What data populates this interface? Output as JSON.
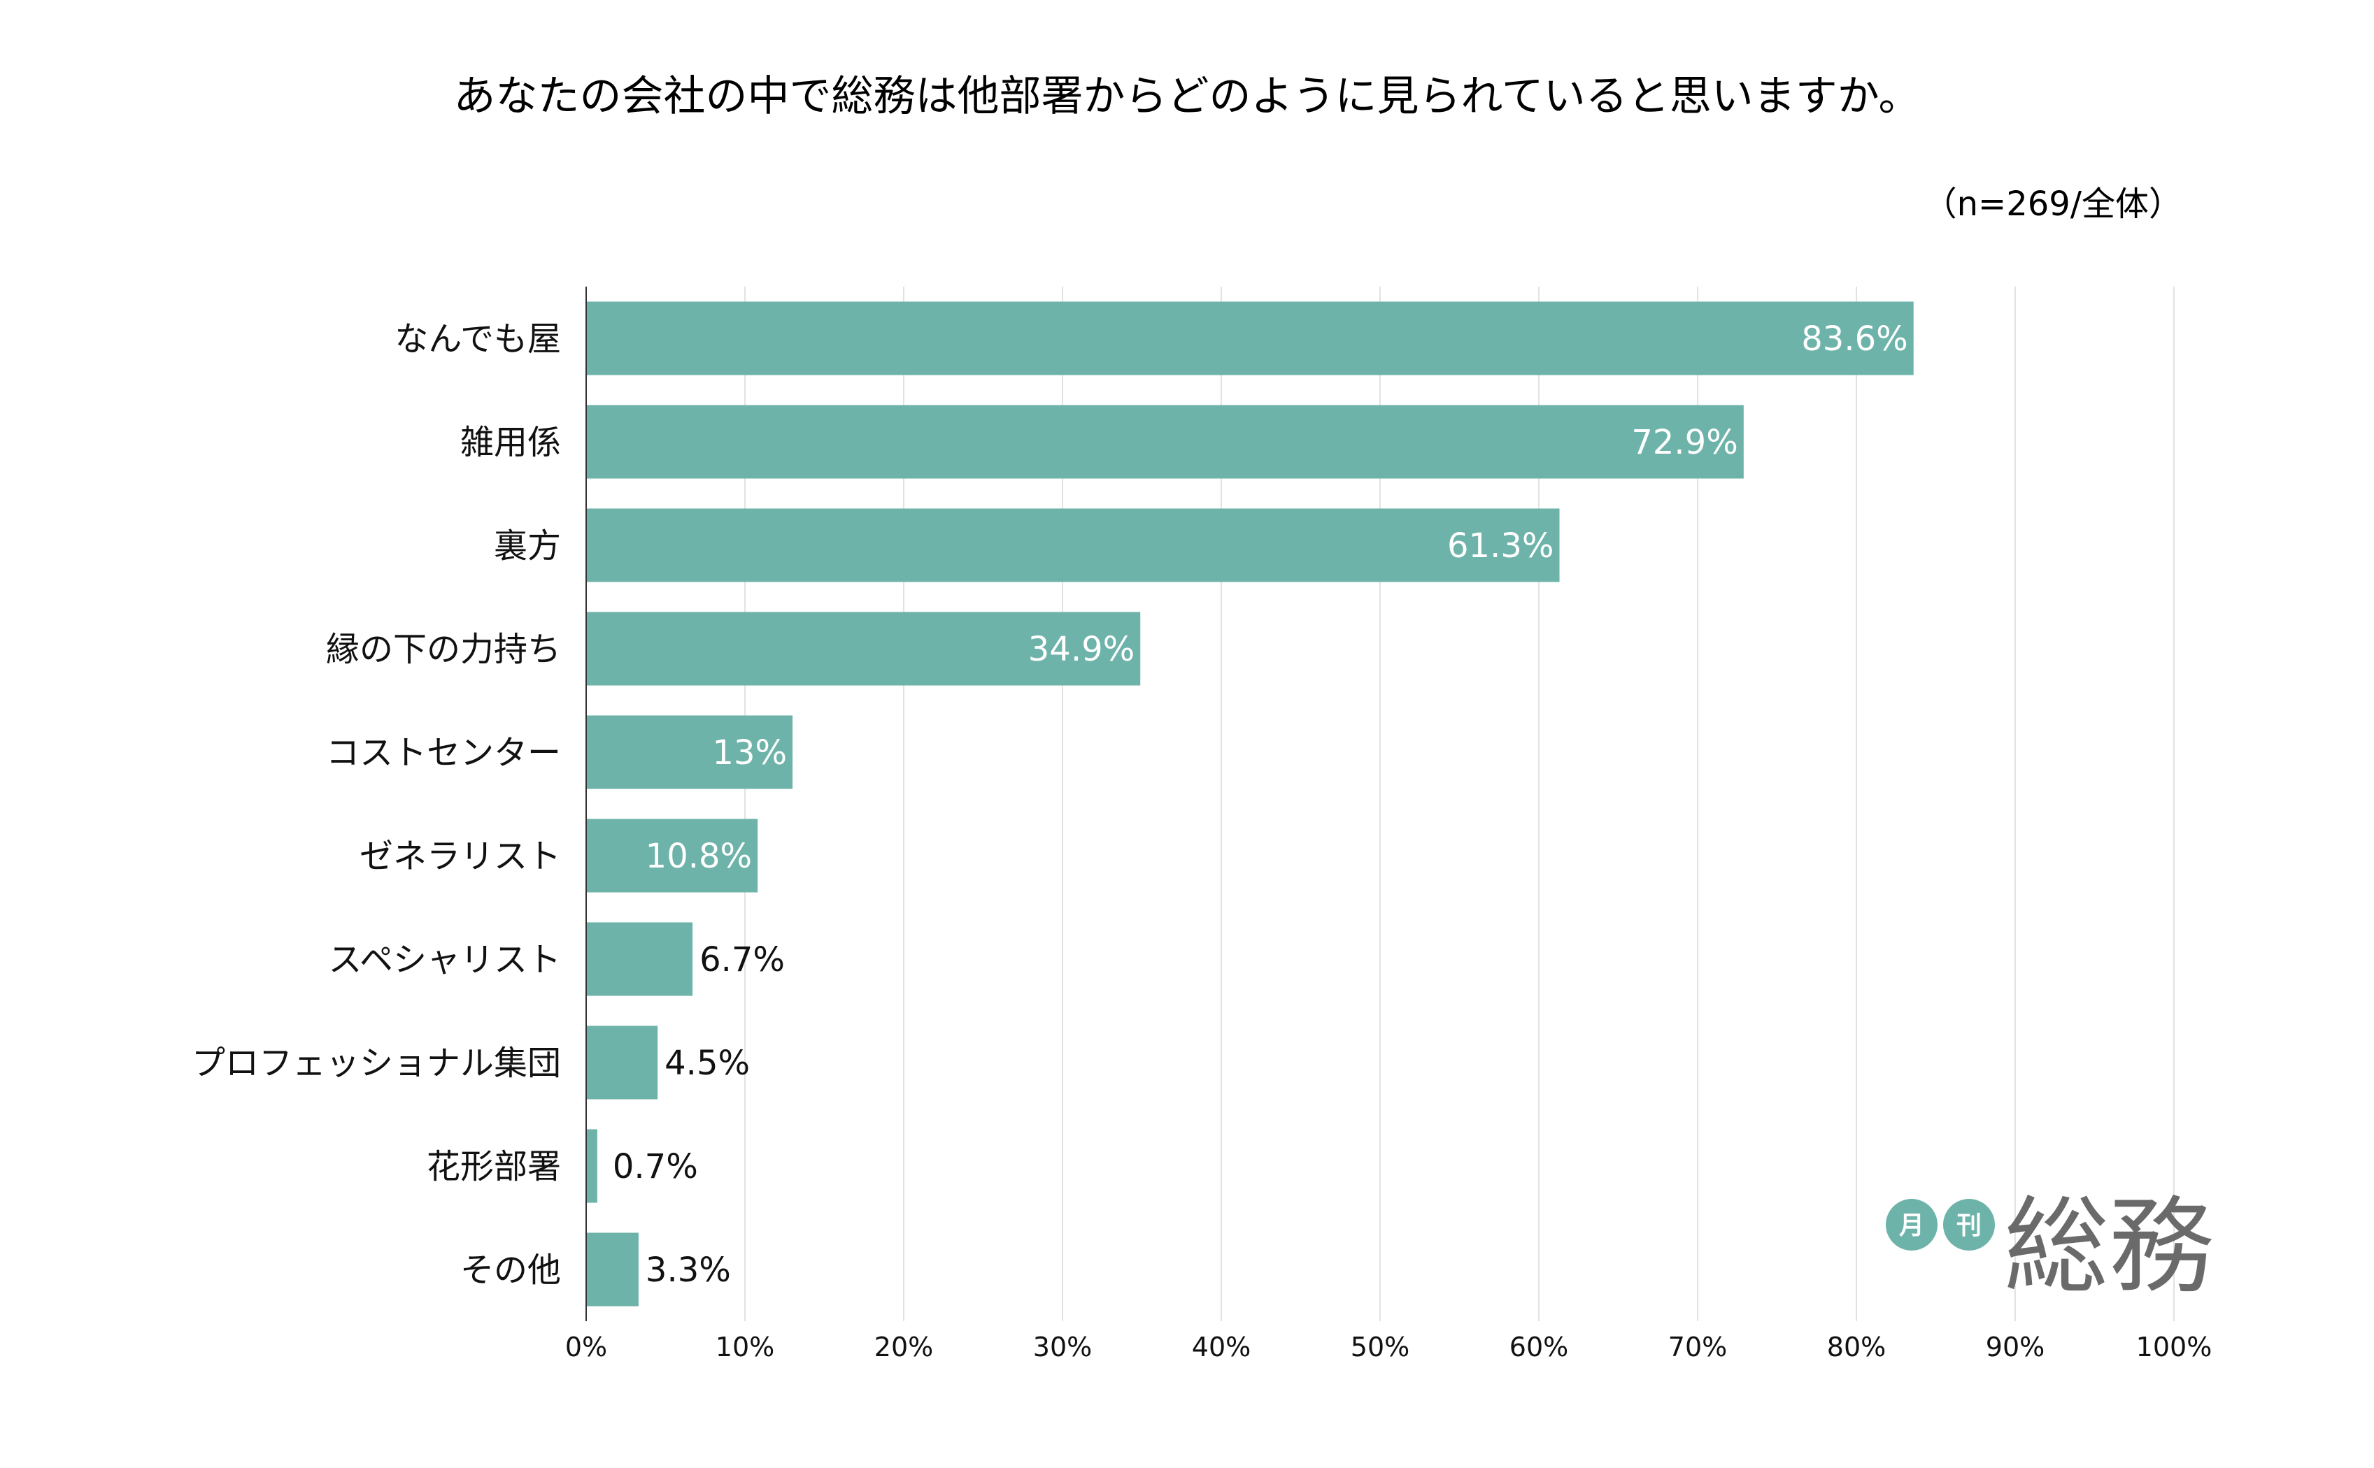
{
  "chart_data": {
    "type": "bar",
    "orientation": "horizontal",
    "title": "あなたの会社の中で総務は他部署からどのように見られていると思いますか。",
    "note": "（n=269/全体）",
    "categories": [
      "なんでも屋",
      "雑用係",
      "裏方",
      "縁の下の力持ち",
      "コストセンター",
      "ゼネラリスト",
      "スペシャリスト",
      "プロフェッショナル集団",
      "花形部署",
      "その他"
    ],
    "values": [
      83.6,
      72.9,
      61.3,
      34.9,
      13,
      10.8,
      6.7,
      4.5,
      0.7,
      3.3
    ],
    "value_labels": [
      "83.6%",
      "72.9%",
      "61.3%",
      "34.9%",
      "13%",
      "10.8%",
      "6.7%",
      "4.5%",
      "0.7%",
      "3.3%"
    ],
    "xlim": [
      0,
      100
    ],
    "xticks": [
      0,
      10,
      20,
      30,
      40,
      50,
      60,
      70,
      80,
      90,
      100
    ],
    "xtick_labels": [
      "0%",
      "10%",
      "20%",
      "30%",
      "40%",
      "50%",
      "60%",
      "70%",
      "80%",
      "90%",
      "100%"
    ],
    "xlabel": "",
    "ylabel": "",
    "grid": "vertical",
    "bar_color": "#6db3a9",
    "grid_color": "#e2e2e2",
    "axis_color": "#333333"
  },
  "logo": {
    "badge_1": "月",
    "badge_2": "刊",
    "word": "総務",
    "badge_color": "#6db3a9",
    "word_color": "#6a6a6a"
  }
}
